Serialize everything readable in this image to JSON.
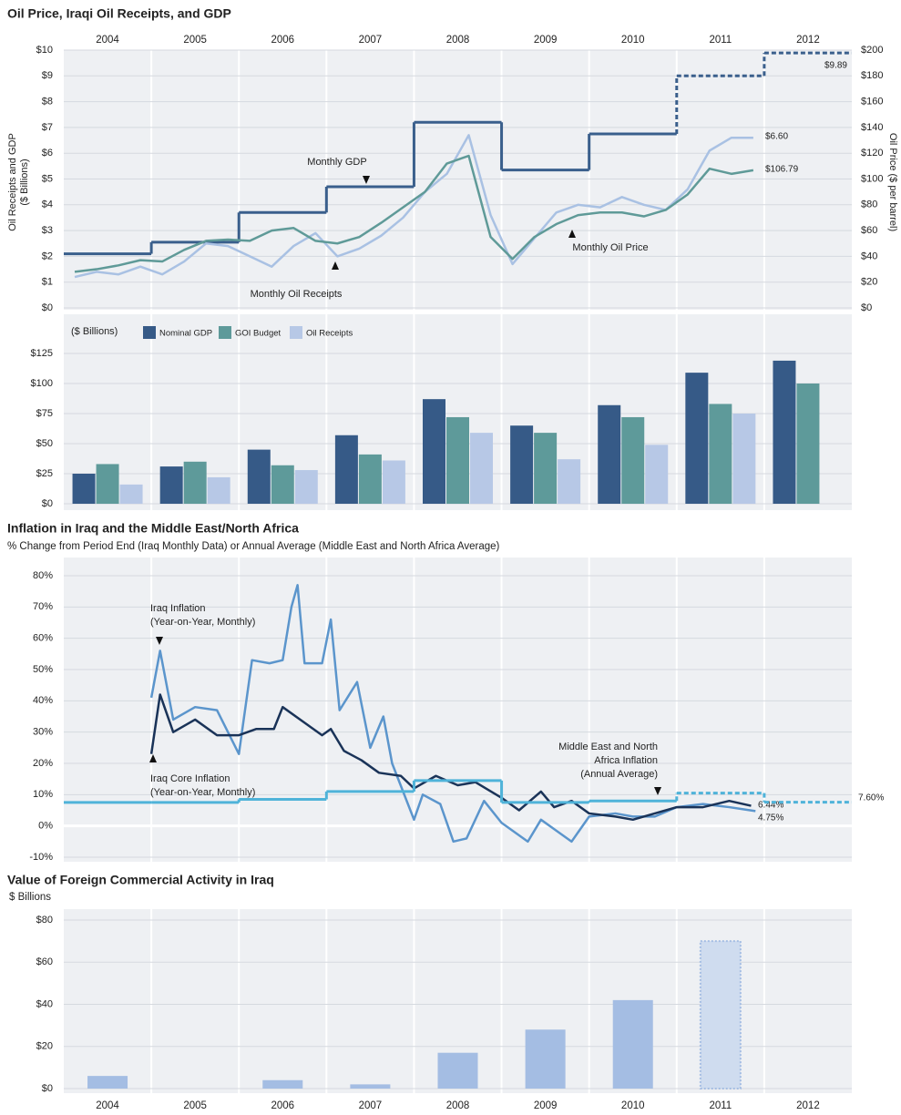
{
  "chart_data": [
    {
      "type": "line",
      "title": "Oil Price, Iraqi Oil Receipts, and GDP",
      "y_label": [
        "Oil Receipts and GDP",
        "($ Billions)"
      ],
      "y2_label": "Oil Price ($ per barrel)",
      "categories": [
        "2004",
        "2005",
        "2006",
        "2007",
        "2008",
        "2009",
        "2010",
        "2011",
        "2012"
      ],
      "xlim": [
        2004,
        2013
      ],
      "ylim": [
        0,
        10
      ],
      "yticks": [
        {
          "value": 0,
          "label": "$0"
        },
        {
          "value": 1,
          "label": "$1"
        },
        {
          "value": 2,
          "label": "$2"
        },
        {
          "value": 3,
          "label": "$3"
        },
        {
          "value": 4,
          "label": "$4"
        },
        {
          "value": 5,
          "label": "$5"
        },
        {
          "value": 6,
          "label": "$6"
        },
        {
          "value": 7,
          "label": "$7"
        },
        {
          "value": 8,
          "label": "$8"
        },
        {
          "value": 9,
          "label": "$9"
        },
        {
          "value": 10,
          "label": "$10"
        }
      ],
      "y2lim": [
        0,
        200
      ],
      "y2ticks": [
        {
          "value": 0,
          "label": "$0"
        },
        {
          "value": 20,
          "label": "$20"
        },
        {
          "value": 40,
          "label": "$40"
        },
        {
          "value": 60,
          "label": "$60"
        },
        {
          "value": 80,
          "label": "$80"
        },
        {
          "value": 100,
          "label": "$100"
        },
        {
          "value": 120,
          "label": "$120"
        },
        {
          "value": 140,
          "label": "$140"
        },
        {
          "value": 160,
          "label": "$160"
        },
        {
          "value": 180,
          "label": "$180"
        },
        {
          "value": 200,
          "label": "$200"
        }
      ],
      "grid": true,
      "series": [
        {
          "name": [
            "Monthly GDP"
          ],
          "color": "#3a5f8c",
          "style": "step",
          "dashed_from_index": 7,
          "x": [
            2004,
            2005,
            2006,
            2007,
            2008,
            2009,
            2010,
            2011,
            2012
          ],
          "values": [
            2.1,
            2.55,
            3.7,
            4.7,
            7.2,
            5.35,
            6.75,
            9.0,
            9.89
          ],
          "value_labels": [
            null,
            null,
            null,
            null,
            null,
            null,
            null,
            null,
            "$9.89"
          ]
        },
        {
          "name": [
            "Monthly Oil Receipts"
          ],
          "color": "#a9c1e3",
          "x": [
            2004.125,
            2004.375,
            2004.625,
            2004.875,
            2005.125,
            2005.375,
            2005.625,
            2005.875,
            2006.125,
            2006.375,
            2006.625,
            2006.875,
            2007.125,
            2007.375,
            2007.625,
            2007.875,
            2008.125,
            2008.375,
            2008.625,
            2008.875,
            2009.125,
            2009.375,
            2009.625,
            2009.875,
            2010.125,
            2010.375,
            2010.625,
            2010.875,
            2011.125,
            2011.375,
            2011.625,
            2011.875
          ],
          "values": [
            1.2,
            1.4,
            1.3,
            1.6,
            1.3,
            1.8,
            2.5,
            2.4,
            2.0,
            1.6,
            2.4,
            2.9,
            2.0,
            2.3,
            2.8,
            3.5,
            4.5,
            5.2,
            6.7,
            3.6,
            1.7,
            2.7,
            3.7,
            4.0,
            3.9,
            4.3,
            4.0,
            3.8,
            4.6,
            6.1,
            6.6,
            6.6
          ],
          "value_labels": [
            null,
            null,
            null,
            null,
            null,
            null,
            null,
            null,
            null,
            null,
            null,
            null,
            null,
            null,
            null,
            null,
            null,
            null,
            null,
            null,
            null,
            null,
            null,
            null,
            null,
            null,
            null,
            null,
            null,
            null,
            null,
            "$6.60"
          ]
        },
        {
          "name": [
            "Monthly Oil Price"
          ],
          "color": "#5f9a98",
          "axis": "y2",
          "x": [
            2004.125,
            2004.375,
            2004.625,
            2004.875,
            2005.125,
            2005.375,
            2005.625,
            2005.875,
            2006.125,
            2006.375,
            2006.625,
            2006.875,
            2007.125,
            2007.375,
            2007.625,
            2007.875,
            2008.125,
            2008.375,
            2008.625,
            2008.875,
            2009.125,
            2009.375,
            2009.625,
            2009.875,
            2010.125,
            2010.375,
            2010.625,
            2010.875,
            2011.125,
            2011.375,
            2011.625,
            2011.875
          ],
          "values": [
            28,
            30,
            33,
            37,
            36,
            45,
            52,
            53,
            52,
            60,
            62,
            52,
            50,
            55,
            66,
            78,
            90,
            112,
            118,
            55,
            38,
            55,
            65,
            72,
            74,
            74,
            71,
            76,
            88,
            108,
            104,
            106.79
          ],
          "value_labels": [
            null,
            null,
            null,
            null,
            null,
            null,
            null,
            null,
            null,
            null,
            null,
            null,
            null,
            null,
            null,
            null,
            null,
            null,
            null,
            null,
            null,
            null,
            null,
            null,
            null,
            null,
            null,
            null,
            null,
            null,
            null,
            "$106.79"
          ]
        }
      ]
    },
    {
      "type": "bar",
      "y_label": "($ Billions)",
      "ylim": [
        0,
        125
      ],
      "yticks": [
        {
          "value": 0,
          "label": "$0"
        },
        {
          "value": 25,
          "label": "$25"
        },
        {
          "value": 50,
          "label": "$50"
        },
        {
          "value": 75,
          "label": "$75"
        },
        {
          "value": 100,
          "label": "$100"
        },
        {
          "value": 125,
          "label": "$125"
        }
      ],
      "grid": true,
      "series": [
        {
          "name": "Nominal GDP",
          "color": "#365a87",
          "values": [
            25,
            31,
            45,
            57,
            87,
            65,
            82,
            109,
            119
          ]
        },
        {
          "name": "GOI Budget",
          "color": "#5e9a9a",
          "values": [
            33,
            35,
            32,
            41,
            72,
            59,
            72,
            83,
            100
          ]
        },
        {
          "name": "Oil Receipts",
          "color": "#b7c8e6",
          "values": [
            16,
            22,
            28,
            36,
            59,
            37,
            49,
            75,
            null
          ]
        }
      ]
    },
    {
      "type": "line",
      "title": "Inflation in Iraq and the Middle East/North Africa",
      "subtitle": "% Change from Period End (Iraq Monthly Data) or Annual Average (Middle East and North Africa Average)",
      "xlim": [
        2004,
        2013
      ],
      "ylim": [
        -10,
        80
      ],
      "yticks": [
        {
          "value": -10,
          "label": "-10%"
        },
        {
          "value": 0,
          "label": "0%"
        },
        {
          "value": 10,
          "label": "10%"
        },
        {
          "value": 20,
          "label": "20%"
        },
        {
          "value": 30,
          "label": "30%"
        },
        {
          "value": 40,
          "label": "40%"
        },
        {
          "value": 50,
          "label": "50%"
        },
        {
          "value": 60,
          "label": "60%"
        },
        {
          "value": 70,
          "label": "70%"
        },
        {
          "value": 80,
          "label": "80%"
        }
      ],
      "grid": true,
      "series": [
        {
          "name": [
            "Iraq Inflation",
            "(Year-on-Year, Monthly)"
          ],
          "color": "#5b95cc",
          "x": [
            2005.0,
            2005.1,
            2005.25,
            2005.5,
            2005.75,
            2006.0,
            2006.15,
            2006.35,
            2006.5,
            2006.6,
            2006.67,
            2006.75,
            2006.95,
            2007.05,
            2007.15,
            2007.35,
            2007.5,
            2007.65,
            2007.75,
            2008.0,
            2008.1,
            2008.3,
            2008.45,
            2008.6,
            2008.8,
            2009.0,
            2009.3,
            2009.45,
            2009.6,
            2009.8,
            2010.0,
            2010.3,
            2010.5,
            2010.75,
            2011.0,
            2011.3,
            2011.6,
            2011.9
          ],
          "values": [
            41,
            56,
            34,
            38,
            37,
            23,
            53,
            52,
            53,
            70,
            77,
            52,
            52,
            66,
            37,
            46,
            25,
            35,
            20,
            2,
            10,
            7,
            -5,
            -4,
            8,
            1,
            -5,
            2,
            -1,
            -5,
            3,
            4,
            3,
            3,
            6,
            7,
            6,
            4.75
          ],
          "value_labels": [
            null,
            null,
            null,
            null,
            null,
            null,
            null,
            null,
            null,
            null,
            null,
            null,
            null,
            null,
            null,
            null,
            null,
            null,
            null,
            null,
            null,
            null,
            null,
            null,
            null,
            null,
            null,
            null,
            null,
            null,
            null,
            null,
            null,
            null,
            null,
            null,
            null,
            "4.75%"
          ]
        },
        {
          "name": [
            "Iraq Core Inflation",
            "(Year-on-Year, Monthly)"
          ],
          "color": "#1a3358",
          "x": [
            2005.0,
            2005.1,
            2005.25,
            2005.5,
            2005.75,
            2006.0,
            2006.2,
            2006.4,
            2006.5,
            2006.75,
            2006.95,
            2007.05,
            2007.2,
            2007.4,
            2007.6,
            2007.85,
            2008.0,
            2008.25,
            2008.5,
            2008.7,
            2009.0,
            2009.2,
            2009.45,
            2009.6,
            2009.8,
            2010.0,
            2010.3,
            2010.5,
            2010.75,
            2011.0,
            2011.3,
            2011.6,
            2011.85
          ],
          "values": [
            23,
            42,
            30,
            34,
            29,
            29,
            31,
            31,
            38,
            33,
            29,
            31,
            24,
            21,
            17,
            16,
            12,
            16,
            13,
            14,
            9,
            5,
            11,
            6,
            8,
            4,
            3,
            2,
            4,
            6,
            6,
            8,
            6.44
          ],
          "value_labels": [
            null,
            null,
            null,
            null,
            null,
            null,
            null,
            null,
            null,
            null,
            null,
            null,
            null,
            null,
            null,
            null,
            null,
            null,
            null,
            null,
            null,
            null,
            null,
            null,
            null,
            null,
            null,
            null,
            null,
            null,
            null,
            null,
            "6.44%"
          ]
        },
        {
          "name": [
            "Middle East and North",
            "Africa Inflation",
            "(Annual Average)"
          ],
          "color": "#4fb3d9",
          "style": "step",
          "dashed_from_index": 7,
          "x": [
            2004,
            2005,
            2006,
            2007,
            2008,
            2009,
            2010,
            2011,
            2012
          ],
          "values": [
            7.5,
            7.5,
            8.5,
            11,
            14.5,
            7.5,
            8,
            10.5,
            7.6
          ],
          "value_labels": [
            null,
            null,
            null,
            null,
            null,
            null,
            null,
            null,
            "7.60%"
          ]
        }
      ]
    },
    {
      "type": "bar",
      "title": "Value of Foreign Commercial Activity in Iraq",
      "y_label": "$ Billions",
      "categories": [
        "2004",
        "2005",
        "2006",
        "2007",
        "2008",
        "2009",
        "2010",
        "2011",
        "2012"
      ],
      "values": [
        6,
        null,
        4,
        2,
        17,
        28,
        42,
        70,
        null
      ],
      "color": "#a4bde3",
      "projected_from_index": 7,
      "ylim": [
        0,
        80
      ],
      "yticks": [
        {
          "value": 0,
          "label": "$0"
        },
        {
          "value": 20,
          "label": "$20"
        },
        {
          "value": 40,
          "label": "$40"
        },
        {
          "value": 60,
          "label": "$60"
        },
        {
          "value": 80,
          "label": "$80"
        }
      ],
      "grid": true
    }
  ]
}
